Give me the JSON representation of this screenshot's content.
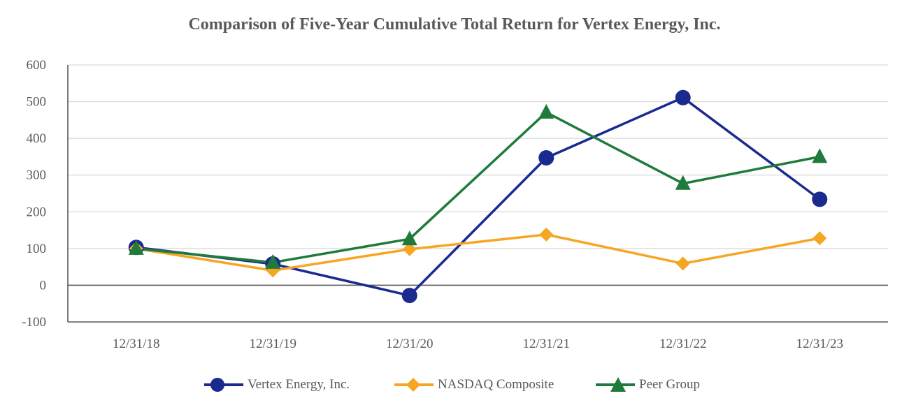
{
  "chart_data": {
    "type": "line",
    "title": "Comparison of Five-Year Cumulative Total Return for Vertex Energy, Inc.",
    "categories": [
      "12/31/18",
      "12/31/19",
      "12/31/20",
      "12/31/21",
      "12/31/22",
      "12/31/23"
    ],
    "ylim": [
      -100,
      600
    ],
    "yticks": [
      -100,
      0,
      100,
      200,
      300,
      400,
      500,
      600
    ],
    "grid": true,
    "legend_position": "bottom",
    "series": [
      {
        "name": "Vertex Energy, Inc.",
        "color": "#1B2A8F",
        "marker": "circle",
        "values": [
          103,
          58,
          -28,
          347,
          511,
          234
        ]
      },
      {
        "name": "NASDAQ Composite",
        "color": "#F5A623",
        "marker": "diamond",
        "values": [
          100,
          40,
          98,
          138,
          59,
          128
        ]
      },
      {
        "name": "Peer Group",
        "color": "#1E7B3B",
        "marker": "triangle",
        "values": [
          100,
          62,
          126,
          471,
          277,
          350
        ]
      }
    ]
  }
}
